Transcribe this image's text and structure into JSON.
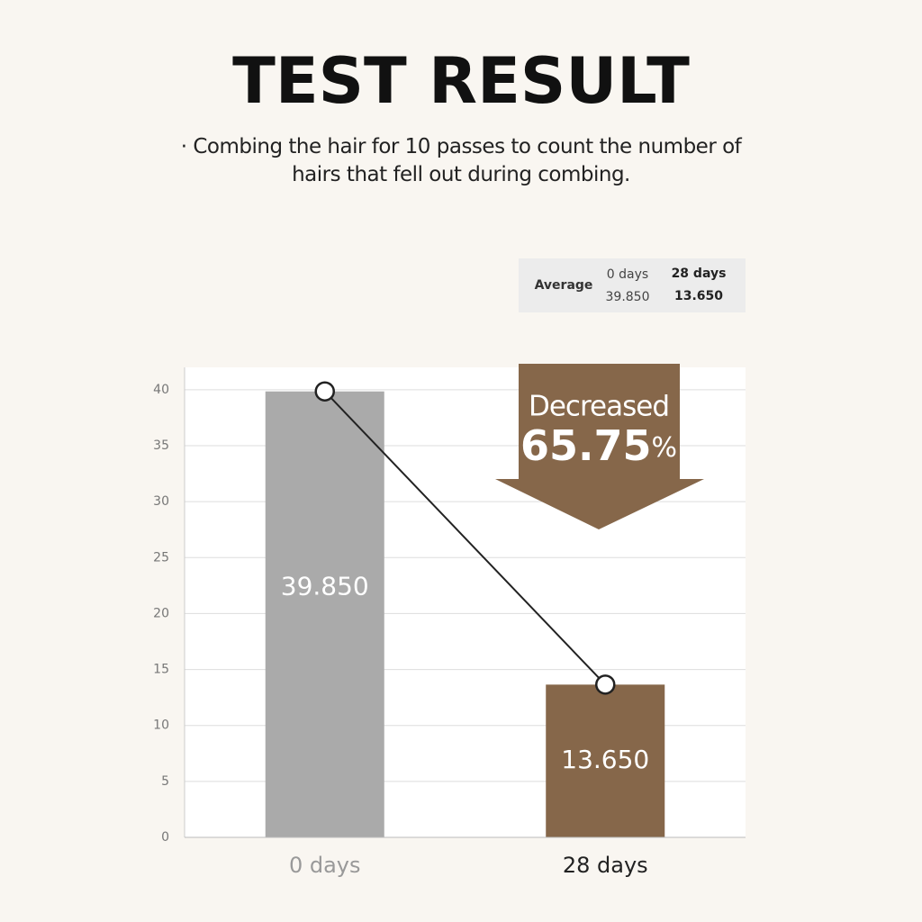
{
  "chart_data": {
    "type": "bar",
    "title": "TEST RESULT",
    "subtitle": "· Combing the hair for 10 passes to count the number of hairs that fell out during combing.",
    "categories": [
      "0 days",
      "28 days"
    ],
    "values": [
      39.85,
      13.65
    ],
    "value_labels": [
      "39.850",
      "13.650"
    ],
    "colors": [
      "#aaaaaa",
      "#86674a"
    ],
    "ylim": [
      0,
      42
    ],
    "yticks": [
      0,
      5,
      10,
      15,
      20,
      25,
      30,
      35,
      40
    ],
    "grid": true,
    "annotation": {
      "text": "Decreased",
      "value": 65.75,
      "unit": "%"
    },
    "summary_table": {
      "header": "Average",
      "columns": [
        "0 days",
        "28 days"
      ],
      "values": [
        "39.850",
        "13.650"
      ]
    }
  }
}
